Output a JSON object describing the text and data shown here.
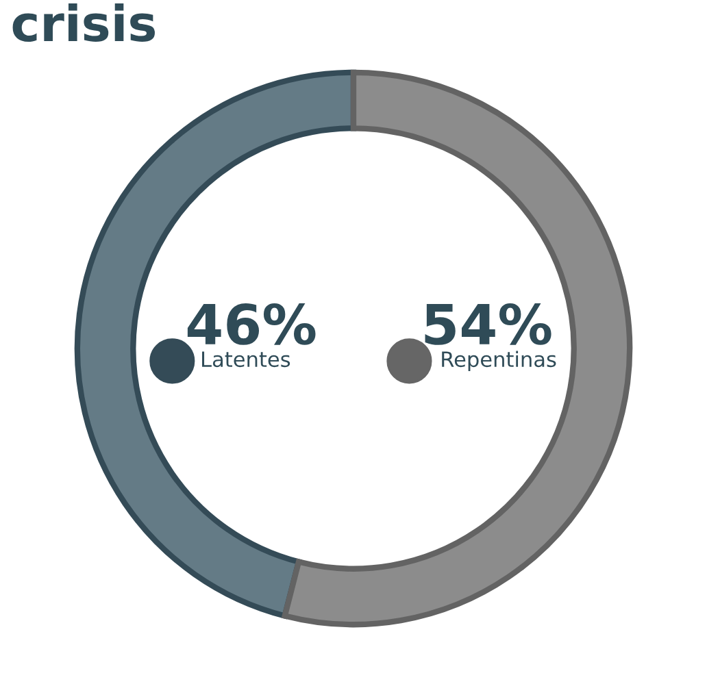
{
  "chart_data": {
    "type": "donut",
    "title": "crisis",
    "categories": [
      "Latentes",
      "Repentinas"
    ],
    "values": [
      46,
      54
    ],
    "value_labels": [
      "46%",
      "54%"
    ],
    "colors": [
      "#647b86",
      "#8c8c8c"
    ]
  }
}
